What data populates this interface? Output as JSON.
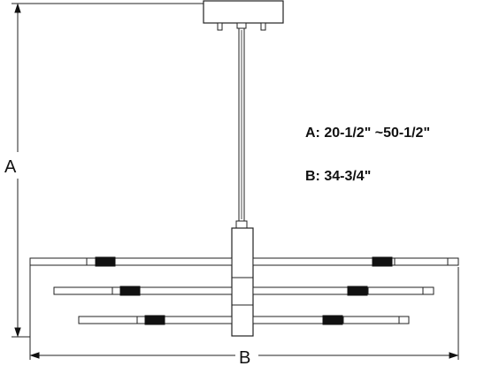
{
  "dimensions": {
    "height_letter": "A",
    "width_letter": "B",
    "specs": [
      "A: 20-1/2\" ~50-1/2\"",
      "B: 34-3/4\""
    ]
  }
}
